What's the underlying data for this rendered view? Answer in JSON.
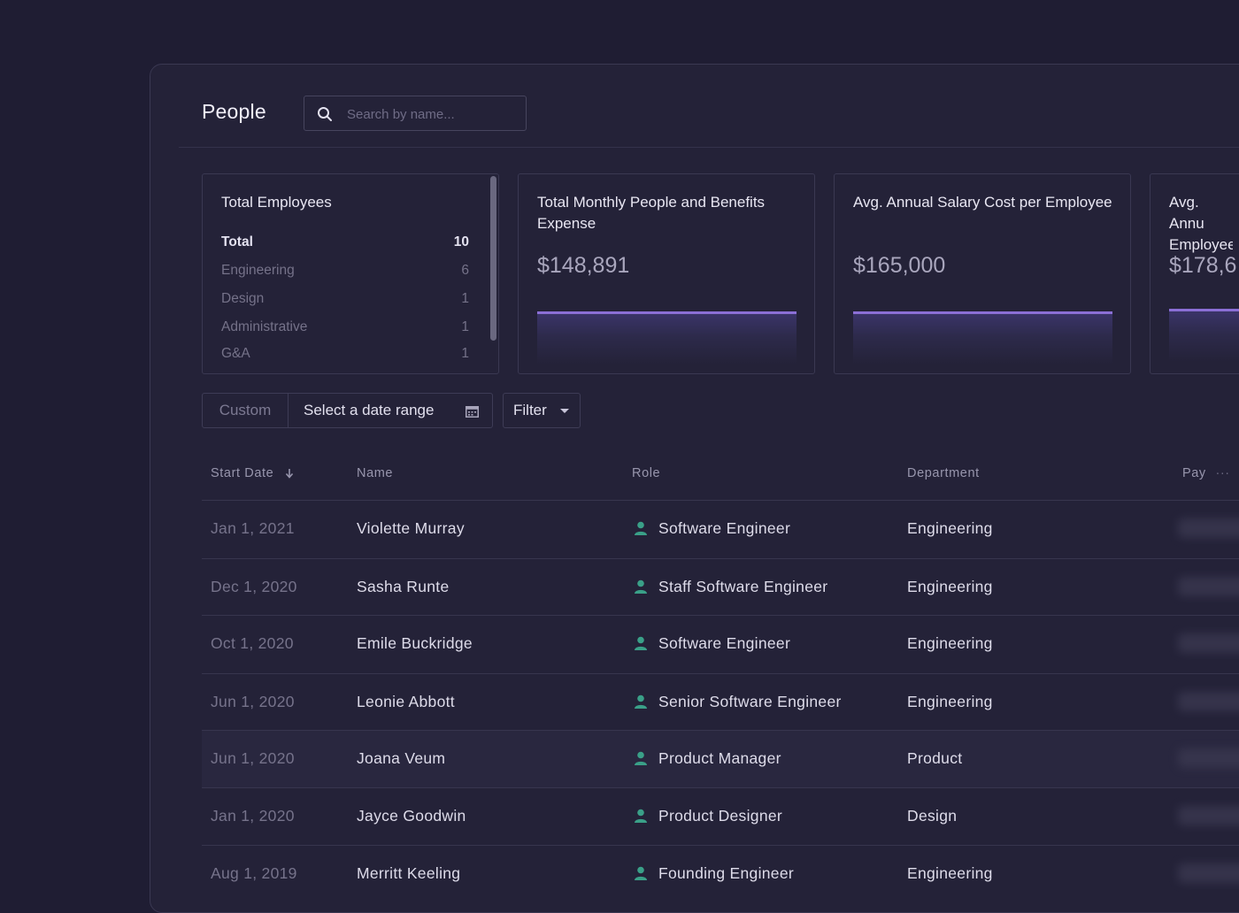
{
  "header": {
    "title": "People",
    "search_placeholder": "Search by name..."
  },
  "cards": {
    "employees": {
      "title": "Total Employees",
      "rows": [
        {
          "label": "Total",
          "count": "10"
        },
        {
          "label": "Engineering",
          "count": "6"
        },
        {
          "label": "Design",
          "count": "1"
        },
        {
          "label": "Administrative",
          "count": "1"
        },
        {
          "label": "G&A",
          "count": "1"
        }
      ]
    },
    "monthly_expense": {
      "title": "Total Monthly People and Benefits Expense",
      "value": "$148,891"
    },
    "avg_salary": {
      "title": "Avg. Annual Salary Cost per Employee",
      "value": "$165,000"
    },
    "avg_fourth": {
      "title": "Avg. Annu Employee",
      "value": "$178,6"
    }
  },
  "filters": {
    "custom_label": "Custom",
    "date_range_label": "Select a date range",
    "filter_label": "Filter"
  },
  "table": {
    "columns": {
      "start_date": "Start Date",
      "name": "Name",
      "role": "Role",
      "department": "Department",
      "pay": "Pay"
    },
    "rows": [
      {
        "date": "Jan 1, 2021",
        "name": "Violette Murray",
        "role": "Software Engineer",
        "department": "Engineering"
      },
      {
        "date": "Dec 1, 2020",
        "name": "Sasha Runte",
        "role": "Staff Software Engineer",
        "department": "Engineering"
      },
      {
        "date": "Oct 1, 2020",
        "name": "Emile Buckridge",
        "role": "Software Engineer",
        "department": "Engineering"
      },
      {
        "date": "Jun 1, 2020",
        "name": "Leonie Abbott",
        "role": "Senior Software Engineer",
        "department": "Engineering"
      },
      {
        "date": "Jun 1, 2020",
        "name": "Joana Veum",
        "role": "Product Manager",
        "department": "Product"
      },
      {
        "date": "Jan 1, 2020",
        "name": "Jayce Goodwin",
        "role": "Product Designer",
        "department": "Design"
      },
      {
        "date": "Aug 1, 2019",
        "name": "Merritt Keeling",
        "role": "Founding Engineer",
        "department": "Engineering"
      }
    ]
  },
  "colors": {
    "background": "#1f1d33",
    "panel": "#242238",
    "accent": "#8b6fd6",
    "role_icon": "#3aa088"
  }
}
